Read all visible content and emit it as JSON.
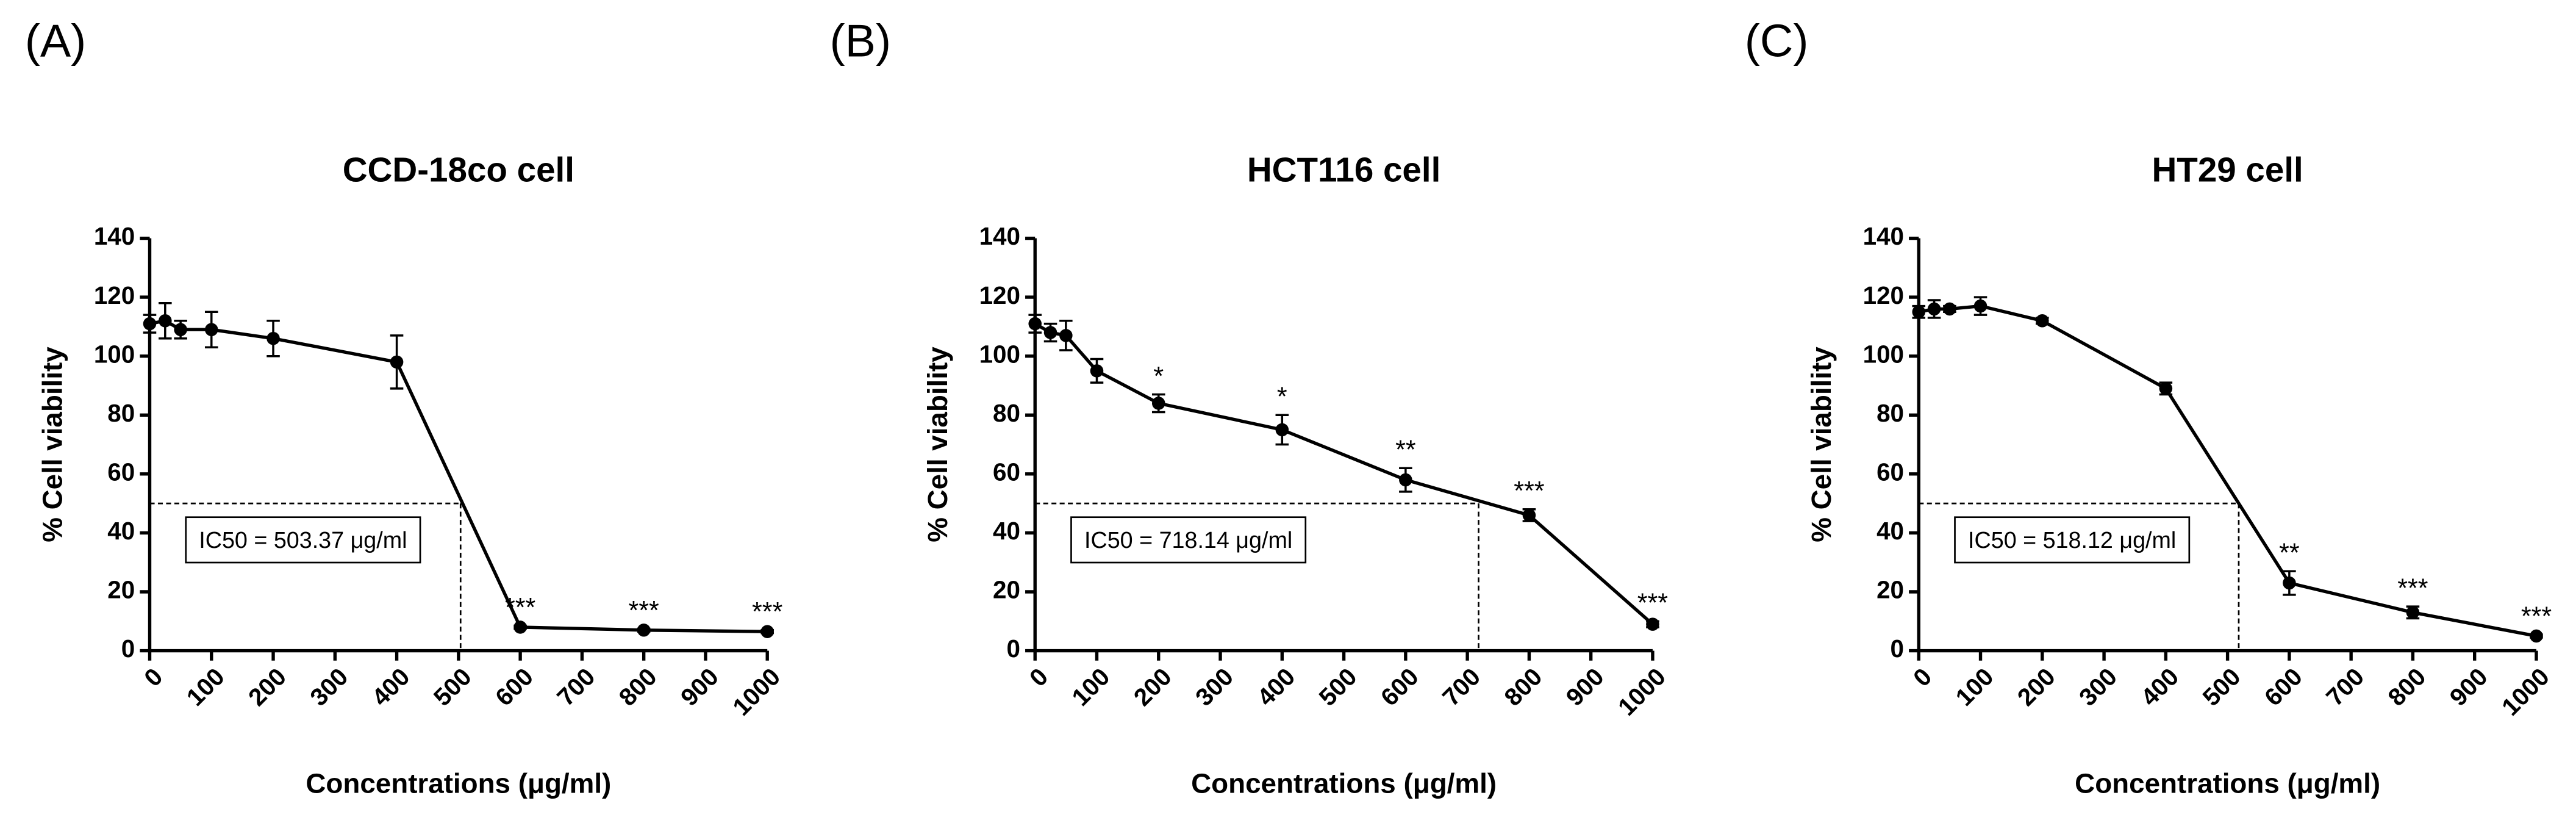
{
  "chart_data": [
    {
      "type": "line",
      "panel": "(A)",
      "title": "CCD-18co cell",
      "x_label": "Concentrations (μg/ml)",
      "y_label": "% Cell viability",
      "x": [
        0,
        25,
        50,
        100,
        200,
        400,
        600,
        800,
        1000
      ],
      "values": [
        111,
        112,
        109,
        109,
        106,
        98,
        8,
        7,
        6.5
      ],
      "errors": [
        3,
        6,
        3,
        6,
        6,
        9,
        0.5,
        0.5,
        0.5
      ],
      "significance": [
        null,
        null,
        null,
        null,
        null,
        null,
        "***",
        "***",
        "***"
      ],
      "color": "#000000",
      "ic50": 503.37,
      "ic50_level": 50,
      "ic50_label": "IC50 = 503.37 μg/ml",
      "xlim": [
        0,
        1000
      ],
      "xticks": [
        0,
        100,
        200,
        300,
        400,
        500,
        600,
        700,
        800,
        900,
        1000
      ],
      "ylim": [
        0,
        140
      ],
      "yticks": [
        0,
        20,
        40,
        60,
        80,
        100,
        120,
        140
      ]
    },
    {
      "type": "line",
      "panel": "(B)",
      "title": "HCT116 cell",
      "x_label": "Concentrations (μg/ml)",
      "y_label": "% Cell viability",
      "x": [
        0,
        25,
        50,
        100,
        200,
        400,
        600,
        800,
        1000
      ],
      "values": [
        111,
        108,
        107,
        95,
        84,
        75,
        58,
        46,
        9
      ],
      "errors": [
        3,
        3,
        5,
        4,
        3,
        5,
        4,
        2,
        1
      ],
      "significance": [
        null,
        null,
        null,
        null,
        "*",
        "*",
        "**",
        "***",
        "***"
      ],
      "color": "#000000",
      "ic50": 718.14,
      "ic50_level": 50,
      "ic50_label": "IC50 = 718.14 μg/ml",
      "xlim": [
        0,
        1000
      ],
      "xticks": [
        0,
        100,
        200,
        300,
        400,
        500,
        600,
        700,
        800,
        900,
        1000
      ],
      "ylim": [
        0,
        140
      ],
      "yticks": [
        0,
        20,
        40,
        60,
        80,
        100,
        120,
        140
      ]
    },
    {
      "type": "line",
      "panel": "(C)",
      "title": "HT29 cell",
      "x_label": "Concentrations (μg/ml)",
      "y_label": "% Cell viability",
      "x": [
        0,
        25,
        50,
        100,
        200,
        400,
        600,
        800,
        1000
      ],
      "values": [
        115,
        116,
        116,
        117,
        112,
        89,
        23,
        13,
        5
      ],
      "errors": [
        2,
        3,
        1,
        3,
        1,
        2,
        4,
        2,
        0.5
      ],
      "significance": [
        null,
        null,
        null,
        null,
        null,
        null,
        "**",
        "***",
        "***"
      ],
      "color": "#000000",
      "ic50": 518.12,
      "ic50_level": 50,
      "ic50_label": "IC50 = 518.12 μg/ml",
      "xlim": [
        0,
        1000
      ],
      "xticks": [
        0,
        100,
        200,
        300,
        400,
        500,
        600,
        700,
        800,
        900,
        1000
      ],
      "ylim": [
        0,
        140
      ],
      "yticks": [
        0,
        20,
        40,
        60,
        80,
        100,
        120,
        140
      ]
    }
  ]
}
